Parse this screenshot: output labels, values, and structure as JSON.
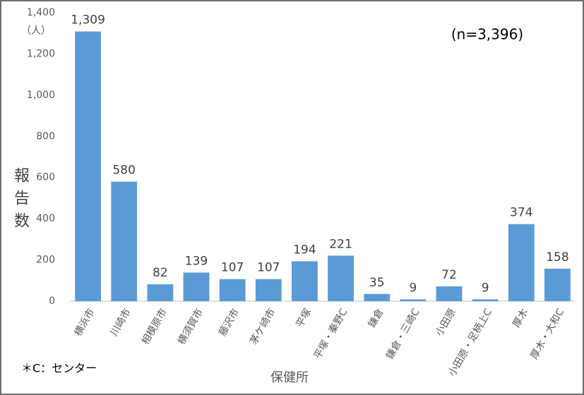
{
  "chart_data": {
    "type": "bar",
    "y_unit": "（人）",
    "y_label": "報告数",
    "x_label": "保健所",
    "annotation": "(n=3,396)",
    "note": "＊C：センター",
    "categories": [
      "横浜市",
      "川崎市",
      "相模原市",
      "横須賀市",
      "藤沢市",
      "茅ケ崎市",
      "平塚",
      "平塚・秦野C",
      "鎌倉",
      "鎌倉・三崎C",
      "小田原",
      "小田原・足柄上C",
      "厚木",
      "厚木・大和C"
    ],
    "values": [
      1309,
      580,
      82,
      139,
      107,
      107,
      194,
      221,
      35,
      9,
      72,
      9,
      374,
      158
    ],
    "value_labels": [
      "1,309",
      "580",
      "82",
      "139",
      "107",
      "107",
      "194",
      "221",
      "35",
      "9",
      "72",
      "9",
      "374",
      "158"
    ],
    "color": "#5b9bd5",
    "ylim": [
      0,
      1400
    ],
    "yticks": [
      0,
      200,
      400,
      600,
      800,
      {
        "value": 1000,
        "label": "1,000"
      },
      {
        "value": 1200,
        "label": "1,200"
      },
      {
        "value": 1400,
        "label": "1,400"
      }
    ],
    "grid": false
  }
}
